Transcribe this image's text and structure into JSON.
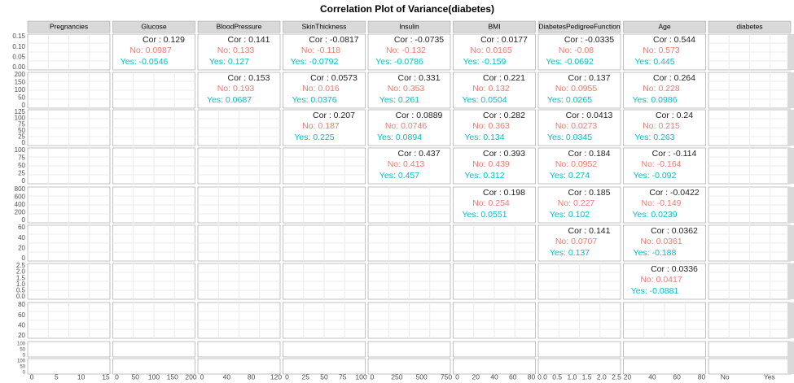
{
  "title": "Correlation Plot of Variance(diabetes)",
  "columns": [
    "Pregnancies",
    "Glucose",
    "BloodPressure",
    "SkinThickness",
    "Insulin",
    "BMI",
    "DiabetesPedigreeFunction",
    "Age",
    "diabetes"
  ],
  "x_ticks": [
    [
      "0",
      "5",
      "10",
      "15"
    ],
    [
      "0",
      "50",
      "100",
      "150",
      "200"
    ],
    [
      "0",
      "40",
      "80",
      "120"
    ],
    [
      "0",
      "25",
      "50",
      "75",
      "100"
    ],
    [
      "0",
      "250",
      "500",
      "750"
    ],
    [
      "0",
      "20",
      "40",
      "60",
      "80"
    ],
    [
      "0.0",
      "0.5",
      "1.0",
      "1.5",
      "2.0",
      "2.5"
    ],
    [
      "20",
      "40",
      "60",
      "80"
    ],
    [
      "No",
      "Yes"
    ]
  ],
  "y_ticks": [
    [
      "0.15",
      "0.10",
      "0.05",
      "0.00"
    ],
    [
      "200",
      "150",
      "100",
      "50",
      "0"
    ],
    [
      "125",
      "100",
      "75",
      "50",
      "25",
      "0"
    ],
    [
      "100",
      "75",
      "50",
      "25",
      "0"
    ],
    [
      "800",
      "600",
      "400",
      "200",
      "0"
    ],
    [
      "60",
      "40",
      "20",
      "0"
    ],
    [
      "2.5",
      "2.0",
      "1.5",
      "1.0",
      "0.5",
      "0.0"
    ],
    [
      "80",
      "60",
      "40",
      "20"
    ],
    [
      "100",
      "50",
      "0",
      "100",
      "50",
      "0"
    ]
  ],
  "correlations": [
    [
      {
        "cor": "Cor : 0.129",
        "no": "No: 0.0987",
        "yes": "Yes: -0.0546"
      },
      {
        "cor": "Cor : 0.141",
        "no": "No: 0.133",
        "yes": "Yes: 0.127"
      },
      {
        "cor": "Cor : -0.0817",
        "no": "No: -0.118",
        "yes": "Yes: -0.0792"
      },
      {
        "cor": "Cor : -0.0735",
        "no": "No: -0.132",
        "yes": "Yes: -0.0786"
      },
      {
        "cor": "Cor : 0.0177",
        "no": "No: 0.0165",
        "yes": "Yes: -0.159"
      },
      {
        "cor": "Cor : -0.0335",
        "no": "No: -0.08",
        "yes": "Yes: -0.0692"
      },
      {
        "cor": "Cor : 0.544",
        "no": "No: 0.573",
        "yes": "Yes: 0.445"
      }
    ],
    [
      {
        "cor": "Cor : 0.153",
        "no": "No: 0.193",
        "yes": "Yes: 0.0687"
      },
      {
        "cor": "Cor : 0.0573",
        "no": "No: 0.016",
        "yes": "Yes: 0.0376"
      },
      {
        "cor": "Cor : 0.331",
        "no": "No: 0.353",
        "yes": "Yes: 0.261"
      },
      {
        "cor": "Cor : 0.221",
        "no": "No: 0.132",
        "yes": "Yes: 0.0504"
      },
      {
        "cor": "Cor : 0.137",
        "no": "No: 0.0955",
        "yes": "Yes: 0.0265"
      },
      {
        "cor": "Cor : 0.264",
        "no": "No: 0.228",
        "yes": "Yes: 0.0986"
      }
    ],
    [
      {
        "cor": "Cor : 0.207",
        "no": "No: 0.187",
        "yes": "Yes: 0.225"
      },
      {
        "cor": "Cor : 0.0889",
        "no": "No: 0.0746",
        "yes": "Yes: 0.0894"
      },
      {
        "cor": "Cor : 0.282",
        "no": "No: 0.363",
        "yes": "Yes: 0.134"
      },
      {
        "cor": "Cor : 0.0413",
        "no": "No: 0.0273",
        "yes": "Yes: 0.0345"
      },
      {
        "cor": "Cor : 0.24",
        "no": "No: 0.215",
        "yes": "Yes: 0.263"
      }
    ],
    [
      {
        "cor": "Cor : 0.437",
        "no": "No: 0.413",
        "yes": "Yes: 0.457"
      },
      {
        "cor": "Cor : 0.393",
        "no": "No: 0.439",
        "yes": "Yes: 0.312"
      },
      {
        "cor": "Cor : 0.184",
        "no": "No: 0.0952",
        "yes": "Yes: 0.274"
      },
      {
        "cor": "Cor : -0.114",
        "no": "No: -0.164",
        "yes": "Yes: -0.092"
      }
    ],
    [
      {
        "cor": "Cor : 0.198",
        "no": "No: 0.254",
        "yes": "Yes: 0.0551"
      },
      {
        "cor": "Cor : 0.185",
        "no": "No: 0.227",
        "yes": "Yes: 0.102"
      },
      {
        "cor": "Cor : -0.0422",
        "no": "No: -0.149",
        "yes": "Yes: 0.0239"
      }
    ],
    [
      {
        "cor": "Cor : 0.141",
        "no": "No: 0.0707",
        "yes": "Yes: 0.137"
      },
      {
        "cor": "Cor : 0.0362",
        "no": "No: 0.0361",
        "yes": "Yes: -0.188"
      }
    ],
    [
      {
        "cor": "Cor : 0.0336",
        "no": "No: 0.0417",
        "yes": "Yes: -0.0881"
      }
    ]
  ]
}
